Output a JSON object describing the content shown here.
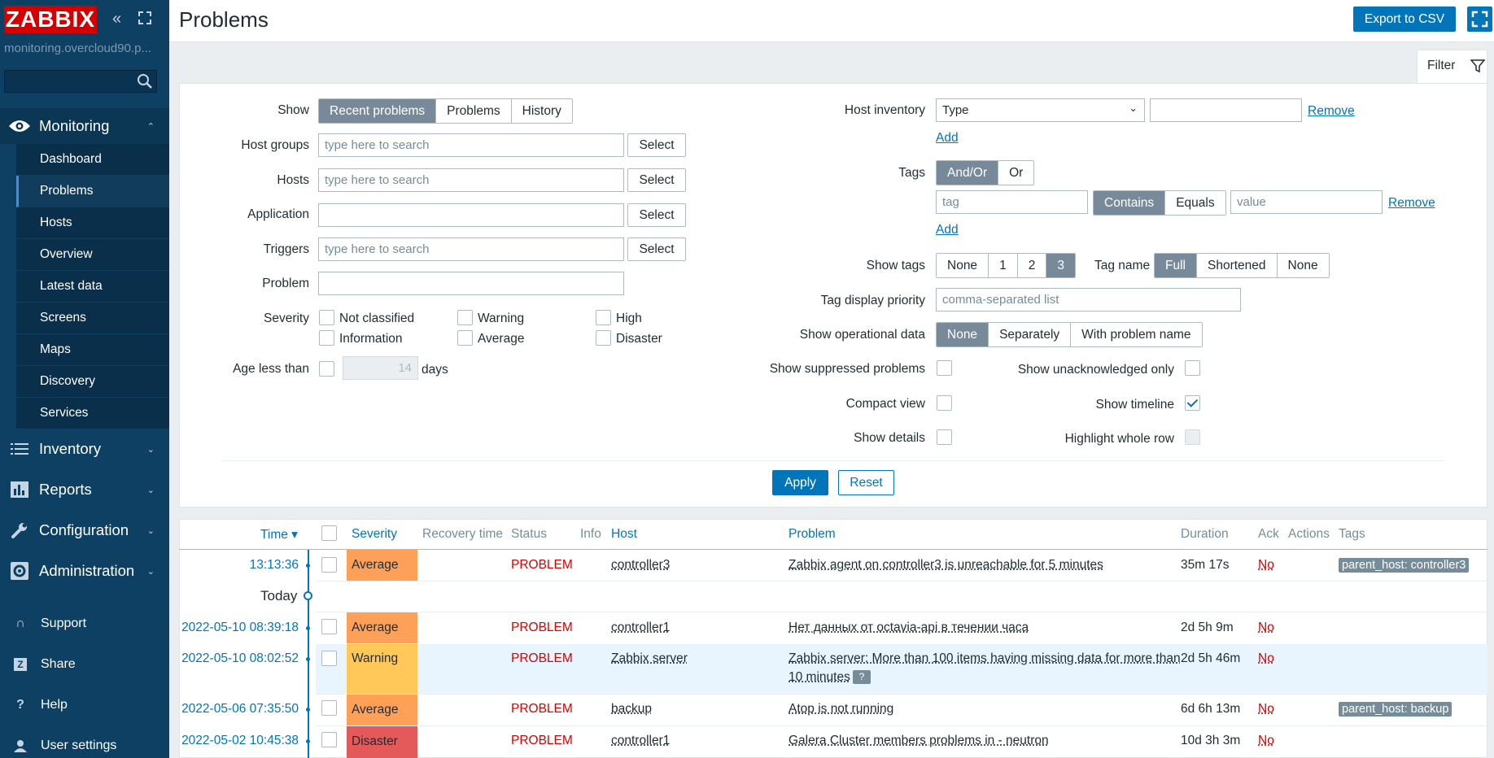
{
  "sidebar": {
    "logo": "ZABBIX",
    "server_name": "monitoring.overcloud90.p...",
    "search_placeholder": "",
    "monitoring_label": "Monitoring",
    "monitoring_items": [
      "Dashboard",
      "Problems",
      "Hosts",
      "Overview",
      "Latest data",
      "Screens",
      "Maps",
      "Discovery",
      "Services"
    ],
    "active_item": "Problems",
    "inventory_label": "Inventory",
    "reports_label": "Reports",
    "configuration_label": "Configuration",
    "administration_label": "Administration",
    "support_label": "Support",
    "share_label": "Share",
    "help_label": "Help",
    "user_settings_label": "User settings"
  },
  "header": {
    "title": "Problems",
    "export_label": "Export to CSV"
  },
  "filter": {
    "tab_label": "Filter",
    "show_label": "Show",
    "show_options": [
      "Recent problems",
      "Problems",
      "History"
    ],
    "host_groups_label": "Host groups",
    "hosts_label": "Hosts",
    "application_label": "Application",
    "triggers_label": "Triggers",
    "problem_label": "Problem",
    "search_placeholder": "type here to search",
    "select_label": "Select",
    "severity_label": "Severity",
    "severities": [
      "Not classified",
      "Warning",
      "High",
      "Information",
      "Average",
      "Disaster"
    ],
    "age_label": "Age less than",
    "age_value": "14",
    "age_unit": "days",
    "host_inventory_label": "Host inventory",
    "inventory_type": "Type",
    "remove_label": "Remove",
    "add_label": "Add",
    "tags_label": "Tags",
    "tags_ops": [
      "And/Or",
      "Or"
    ],
    "tag_placeholder": "tag",
    "tag_match_ops": [
      "Contains",
      "Equals"
    ],
    "value_placeholder": "value",
    "show_tags_label": "Show tags",
    "show_tags_options": [
      "None",
      "1",
      "2",
      "3"
    ],
    "tag_name_label": "Tag name",
    "tag_name_options": [
      "Full",
      "Shortened",
      "None"
    ],
    "tag_priority_label": "Tag display priority",
    "tag_priority_placeholder": "comma-separated list",
    "op_data_label": "Show operational data",
    "op_data_options": [
      "None",
      "Separately",
      "With problem name"
    ],
    "suppressed_label": "Show suppressed problems",
    "unack_label": "Show unacknowledged only",
    "compact_label": "Compact view",
    "timeline_label": "Show timeline",
    "timeline_checked": true,
    "details_label": "Show details",
    "highlight_label": "Highlight whole row",
    "apply_label": "Apply",
    "reset_label": "Reset"
  },
  "table": {
    "headers": {
      "time": "Time ▾",
      "severity": "Severity",
      "recovery": "Recovery time",
      "status": "Status",
      "info": "Info",
      "host": "Host",
      "problem": "Problem",
      "duration": "Duration",
      "ack": "Ack",
      "actions": "Actions",
      "tags": "Tags"
    },
    "today_label": "Today",
    "rows": [
      {
        "time": "13:13:36",
        "severity": "Average",
        "sev_color": "#ffa059",
        "status": "PROBLEM",
        "host": "controller3",
        "problem": "Zabbix agent on controller3 is unreachable for 5 minutes",
        "problem2": "",
        "duration": "35m 17s",
        "ack": "No",
        "tag": "parent_host: controller3"
      },
      {
        "time": "2022-05-10 08:39:18",
        "severity": "Average",
        "sev_color": "#ffa059",
        "status": "PROBLEM",
        "host": "controller1",
        "problem": "Нет данных от octavia-api в течении часа",
        "problem2": "",
        "duration": "2d 5h 9m",
        "ack": "No",
        "tag": ""
      },
      {
        "time": "2022-05-10 08:02:52",
        "severity": "Warning",
        "sev_color": "#ffc859",
        "status": "PROBLEM",
        "host": "Zabbix server",
        "problem": "Zabbix server: More than 100 items having missing data for more than",
        "problem2": "10 minutes",
        "duration": "2d 5h 46m",
        "ack": "No",
        "tag": ""
      },
      {
        "time": "2022-05-06 07:35:50",
        "severity": "Average",
        "sev_color": "#ffa059",
        "status": "PROBLEM",
        "host": "backup",
        "problem": "Atop is not running",
        "problem2": "",
        "duration": "6d 6h 13m",
        "ack": "No",
        "tag": "parent_host: backup"
      },
      {
        "time": "2022-05-02 10:45:38",
        "severity": "Disaster",
        "sev_color": "#e45959",
        "status": "PROBLEM",
        "host": "controller1",
        "problem": "Galera Cluster members problems in - neutron",
        "problem2": "",
        "duration": "10d 3h 3m",
        "ack": "No",
        "tag": ""
      }
    ]
  }
}
